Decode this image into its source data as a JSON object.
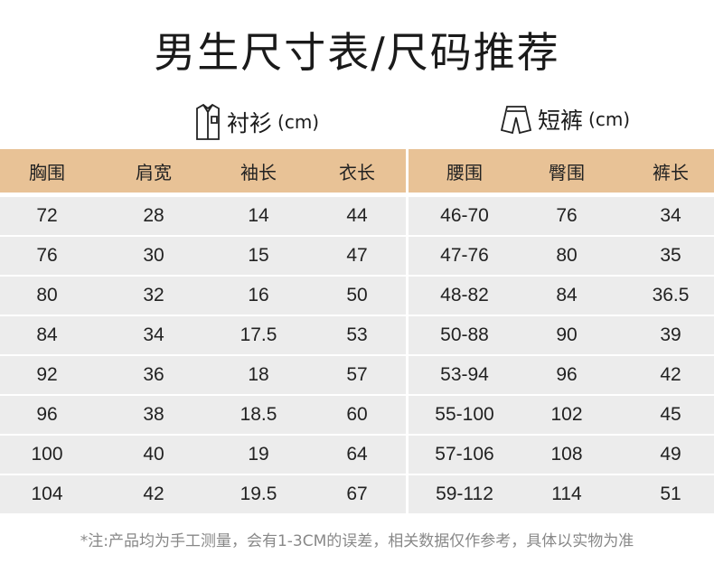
{
  "title": "男生尺寸表/尺码推荐",
  "shirt": {
    "label": "衬衫",
    "unit": "(cm)",
    "icon": "shirt-icon"
  },
  "shorts": {
    "label": "短裤",
    "unit": "(cm)",
    "icon": "shorts-icon"
  },
  "headers": [
    "胸围",
    "肩宽",
    "袖长",
    "衣长",
    "腰围",
    "臀围",
    "裤长"
  ],
  "rows": [
    [
      "72",
      "28",
      "14",
      "44",
      "46-70",
      "76",
      "34"
    ],
    [
      "76",
      "30",
      "15",
      "47",
      "47-76",
      "80",
      "35"
    ],
    [
      "80",
      "32",
      "16",
      "50",
      "48-82",
      "84",
      "36.5"
    ],
    [
      "84",
      "34",
      "17.5",
      "53",
      "50-88",
      "90",
      "39"
    ],
    [
      "92",
      "36",
      "18",
      "57",
      "53-94",
      "96",
      "42"
    ],
    [
      "96",
      "38",
      "18.5",
      "60",
      "55-100",
      "102",
      "45"
    ],
    [
      "100",
      "40",
      "19",
      "64",
      "57-106",
      "108",
      "49"
    ],
    [
      "104",
      "42",
      "19.5",
      "67",
      "59-112",
      "114",
      "51"
    ]
  ],
  "note": "*注:产品均为手工测量，会有1-3CM的误差，相关数据仅作参考，具体以实物为准",
  "colors": {
    "header": "#e8c296",
    "row": "#ececec"
  }
}
